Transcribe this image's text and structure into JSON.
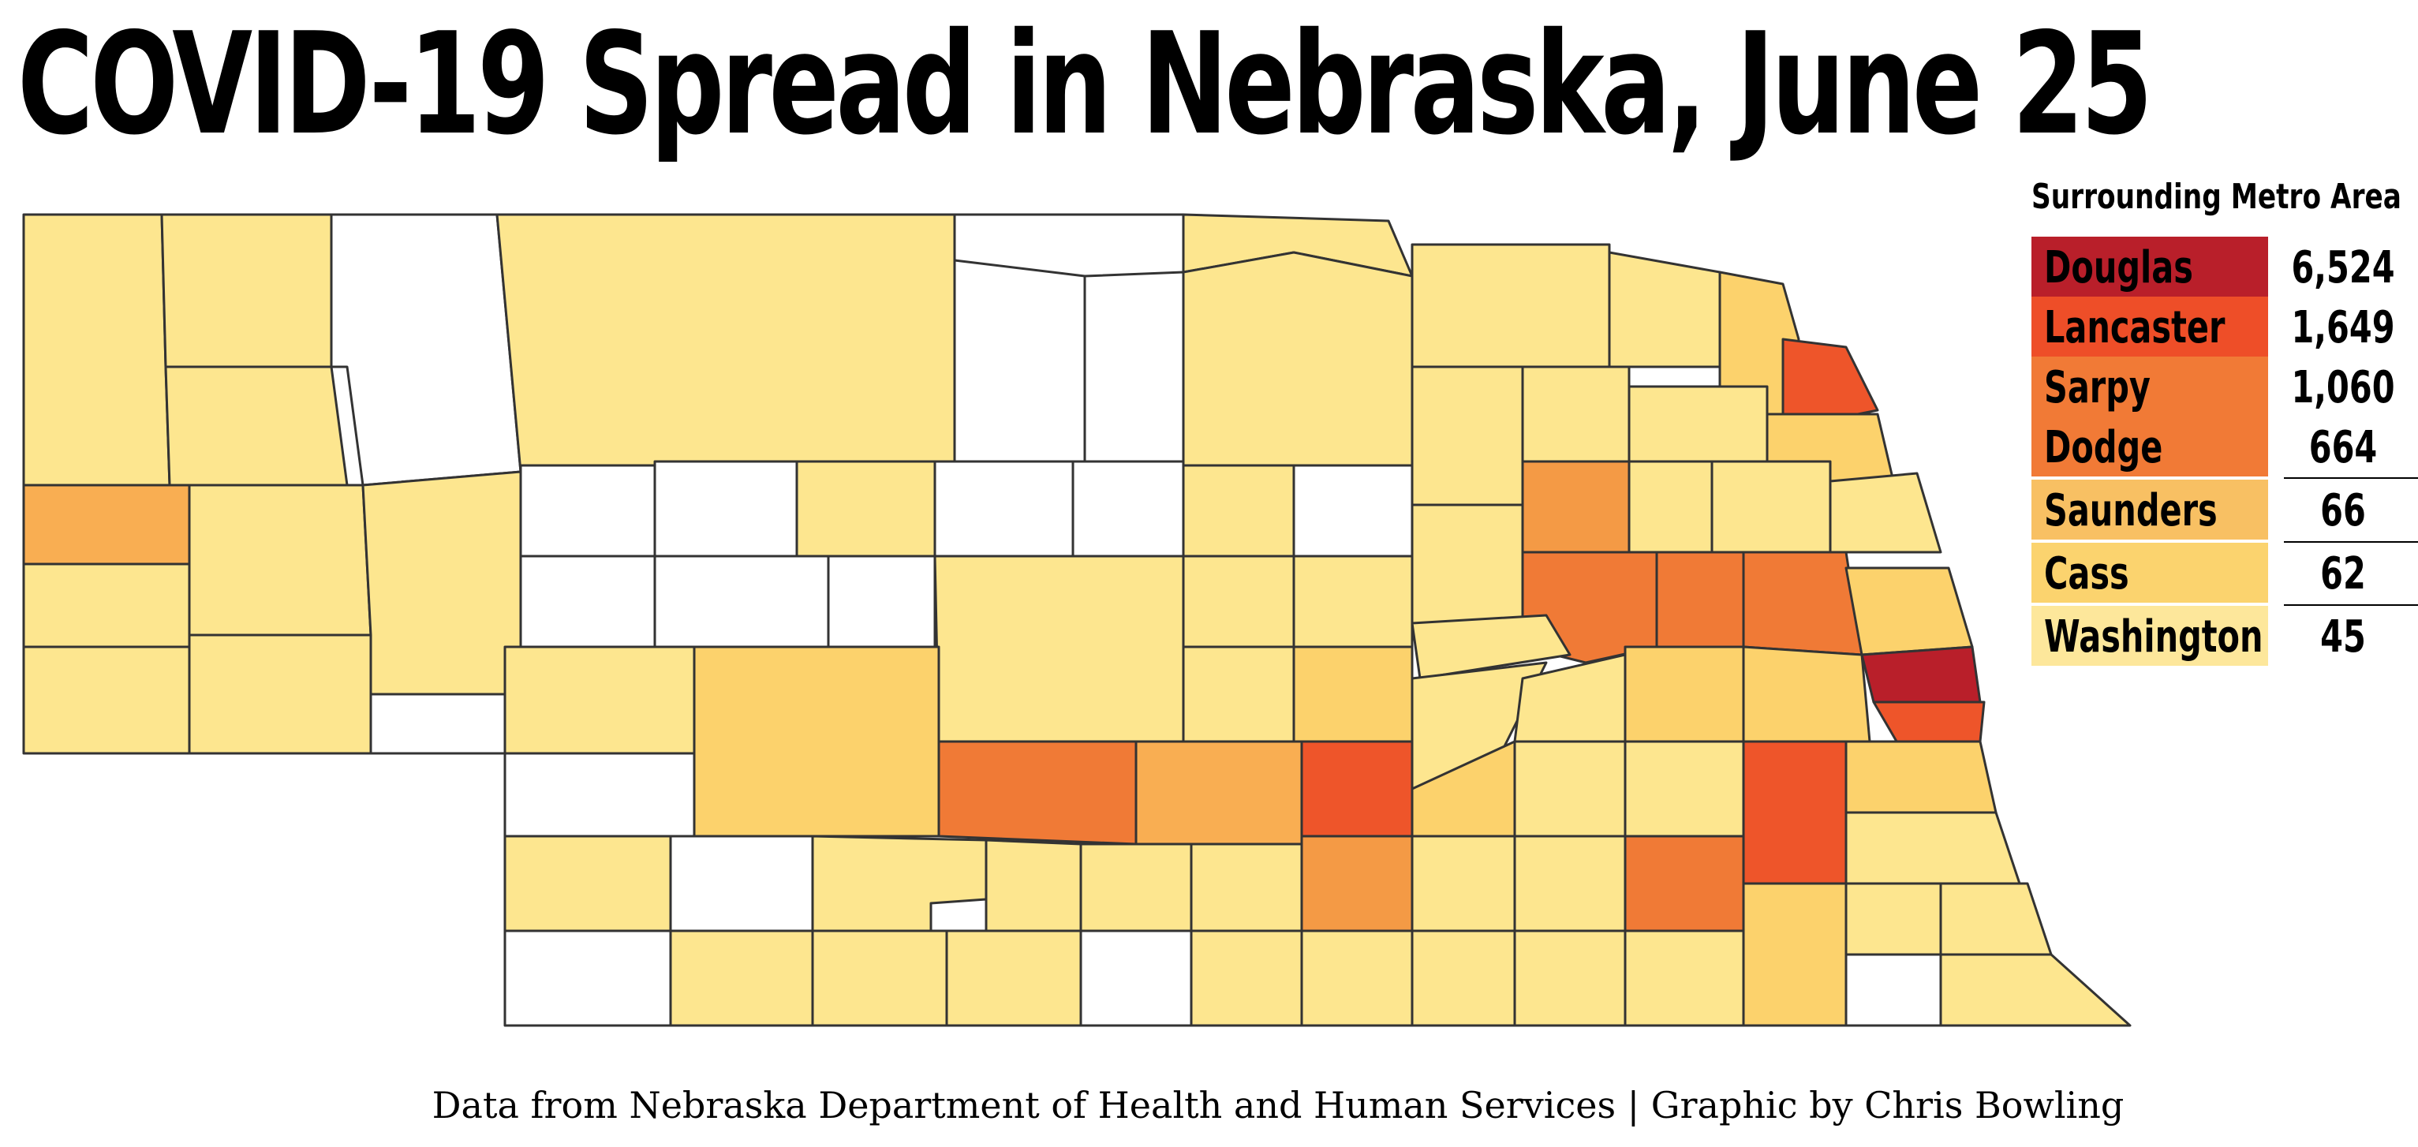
{
  "title": "COVID-19 Spread in Nebraska, June 25",
  "metro": {
    "heading": "Surrounding Metro Area",
    "rows": [
      {
        "county": "Douglas",
        "count": "6,524",
        "color": "#b91f2a"
      },
      {
        "county": "Lancaster",
        "count": "1,649",
        "color": "#ee4e28"
      },
      {
        "county": "Sarpy",
        "count": "1,060",
        "color": "#f17a36"
      },
      {
        "county": "Dodge",
        "count": "664",
        "color": "#f17a36"
      },
      {
        "county": "Saunders",
        "count": "66",
        "color": "#f8c063"
      },
      {
        "county": "Cass",
        "count": "62",
        "color": "#fbd36e"
      },
      {
        "county": "Washington",
        "count": "45",
        "color": "#fde79b"
      }
    ]
  },
  "colors": {
    "none": "#ffffff",
    "lowest": "#fde68f",
    "low": "#fcd26c",
    "medium": "#f9ae52",
    "medium_high": "#f49a45",
    "high": "#f07a36",
    "higher": "#ee552a",
    "highest": "#b91f2a",
    "outline": "#333333"
  },
  "credit": "Data from Nebraska Department of Health and Human Services | Graphic by Chris Bowling"
}
